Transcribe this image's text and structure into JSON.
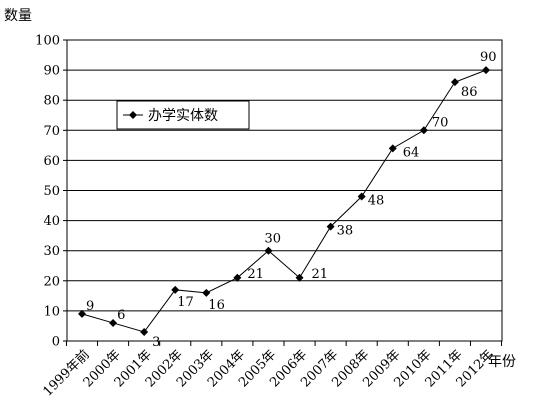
{
  "chart_data": {
    "type": "line",
    "ylabel": "数量",
    "xlabel": "年份",
    "ylim": [
      0,
      100
    ],
    "yticks": [
      0,
      10,
      20,
      30,
      40,
      50,
      60,
      70,
      80,
      90,
      100
    ],
    "grid": "horizontal",
    "legend_position": "upper-left",
    "categories": [
      "1999年前",
      "2000年",
      "2001年",
      "2002年",
      "2003年",
      "2004年",
      "2005年",
      "2006年",
      "2007年",
      "2008年",
      "2009年",
      "2010年",
      "2011年",
      "2012年"
    ],
    "series": [
      {
        "name": "办学实体数",
        "values": [
          9,
          6,
          3,
          17,
          16,
          21,
          30,
          21,
          38,
          48,
          64,
          70,
          86,
          90
        ]
      }
    ],
    "line_color": "#000000",
    "marker": "diamond"
  }
}
